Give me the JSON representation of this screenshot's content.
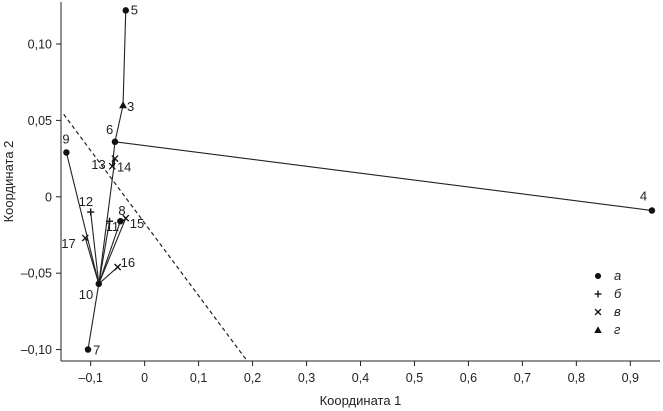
{
  "chart_data": {
    "type": "scatter",
    "title": "",
    "xlabel": "Координата 1",
    "ylabel": "Координата 2",
    "xlim": [
      -0.155,
      0.955
    ],
    "ylim": [
      -0.1075,
      0.1275
    ],
    "xticks": [
      -0.1,
      0,
      0.1,
      0.2,
      0.3,
      0.4,
      0.5,
      0.6,
      0.7,
      0.8,
      0.9
    ],
    "xtick_labels": [
      "–0,1",
      "0",
      "0,1",
      "0,2",
      "0,3",
      "0,4",
      "0,5",
      "0,6",
      "0,7",
      "0,8",
      "0,9"
    ],
    "yticks": [
      -0.1,
      -0.05,
      0,
      0.05,
      0.1
    ],
    "ytick_labels": [
      "–0,10",
      "–0,05",
      "0",
      "0,05",
      "0,10"
    ],
    "grid": false,
    "points": [
      {
        "id": "3",
        "x": -0.04,
        "y": 0.06,
        "group": "г"
      },
      {
        "id": "4",
        "x": 0.94,
        "y": -0.009,
        "group": "а"
      },
      {
        "id": "5",
        "x": -0.035,
        "y": 0.122,
        "group": "а"
      },
      {
        "id": "6",
        "x": -0.055,
        "y": 0.036,
        "group": "а"
      },
      {
        "id": "7",
        "x": -0.105,
        "y": -0.1,
        "group": "а"
      },
      {
        "id": "8",
        "x": -0.045,
        "y": -0.016,
        "group": "а"
      },
      {
        "id": "9",
        "x": -0.145,
        "y": 0.029,
        "group": "а"
      },
      {
        "id": "10",
        "x": -0.085,
        "y": -0.057,
        "group": "а"
      },
      {
        "id": "11",
        "x": -0.065,
        "y": -0.016,
        "group": "б"
      },
      {
        "id": "12",
        "x": -0.1,
        "y": -0.01,
        "group": "б"
      },
      {
        "id": "13",
        "x": -0.06,
        "y": 0.02,
        "group": "в"
      },
      {
        "id": "14",
        "x": -0.055,
        "y": 0.025,
        "group": "в"
      },
      {
        "id": "15",
        "x": -0.035,
        "y": -0.014,
        "group": "в"
      },
      {
        "id": "16",
        "x": -0.05,
        "y": -0.046,
        "group": "в"
      },
      {
        "id": "17",
        "x": -0.11,
        "y": -0.027,
        "group": "в"
      }
    ],
    "edges": [
      [
        "5",
        "3"
      ],
      [
        "3",
        "6"
      ],
      [
        "6",
        "4"
      ],
      [
        "6",
        "13"
      ],
      [
        "13",
        "14"
      ],
      [
        "14",
        "10"
      ],
      [
        "9",
        "10"
      ],
      [
        "12",
        "10"
      ],
      [
        "17",
        "10"
      ],
      [
        "11",
        "10"
      ],
      [
        "8",
        "10"
      ],
      [
        "15",
        "10"
      ],
      [
        "16",
        "10"
      ],
      [
        "7",
        "10"
      ]
    ],
    "dashed_line": [
      [
        -0.15,
        0.054
      ],
      [
        0.19,
        -0.1075
      ]
    ],
    "legend": {
      "placement": "bottom-right",
      "entries": [
        {
          "label": "а",
          "marker": "circle"
        },
        {
          "label": "б",
          "marker": "plus"
        },
        {
          "label": "в",
          "marker": "cross"
        },
        {
          "label": "г",
          "marker": "triangle"
        }
      ]
    }
  }
}
